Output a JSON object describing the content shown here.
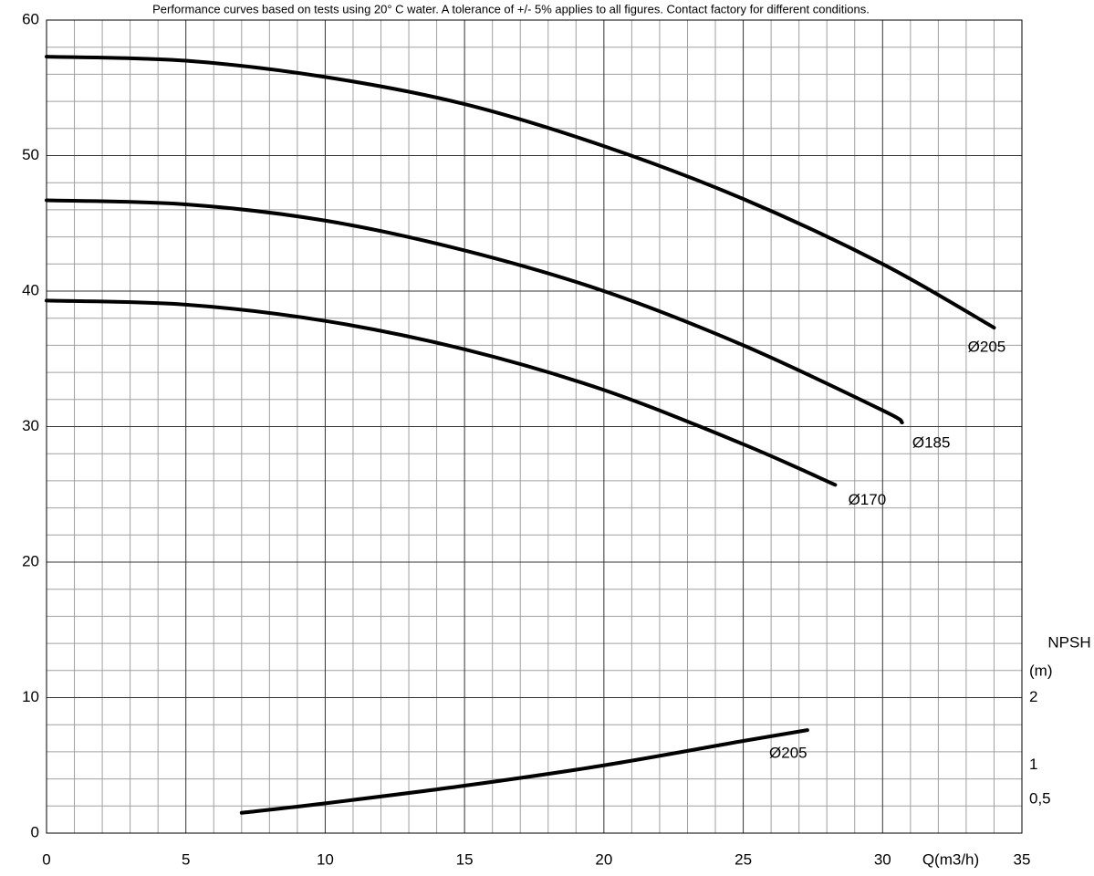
{
  "chart_data": {
    "type": "line",
    "title": "Performance curves based on tests using 20° C water. A tolerance of +/- 5% applies to all figures. Contact factory for different conditions.",
    "x_label": "Q(m3/h)",
    "y2_label": [
      "NPSH",
      "(m)"
    ],
    "xlim": [
      0,
      35
    ],
    "xticks": [
      0,
      5,
      10,
      15,
      20,
      25,
      30,
      35
    ],
    "ylim": [
      0,
      60
    ],
    "yticks": [
      0,
      10,
      20,
      30,
      40,
      50,
      60
    ],
    "y2lim": [
      0,
      12
    ],
    "y2ticks": [
      {
        "value": 0.5,
        "label": "0,5"
      },
      1,
      2
    ],
    "grid": true,
    "x_minor_divisions": 5,
    "y_minor_divisions": 5,
    "series": [
      {
        "name": "Ø205",
        "color": "#000000",
        "x": [
          0,
          5,
          10,
          15,
          20,
          25,
          30,
          34
        ],
        "values": [
          57.3,
          57.0,
          55.8,
          53.8,
          50.7,
          46.8,
          42.0,
          37.3
        ]
      },
      {
        "name": "Ø185",
        "color": "#000000",
        "x": [
          0,
          5,
          10,
          15,
          20,
          25,
          30,
          30.7
        ],
        "values": [
          46.7,
          46.4,
          45.2,
          43.0,
          40.0,
          36.0,
          31.2,
          30.3
        ]
      },
      {
        "name": "Ø170",
        "color": "#000000",
        "x": [
          0,
          5,
          10,
          15,
          20,
          25,
          28.3
        ],
        "values": [
          39.3,
          39.0,
          37.8,
          35.7,
          32.7,
          28.7,
          25.7
        ]
      },
      {
        "name": "Ø205",
        "color": "#000000",
        "axis": "y2",
        "x": [
          7,
          10,
          15,
          20,
          25,
          27.3
        ],
        "values": [
          0.3,
          0.44,
          0.7,
          1.0,
          1.36,
          1.52
        ]
      }
    ]
  }
}
